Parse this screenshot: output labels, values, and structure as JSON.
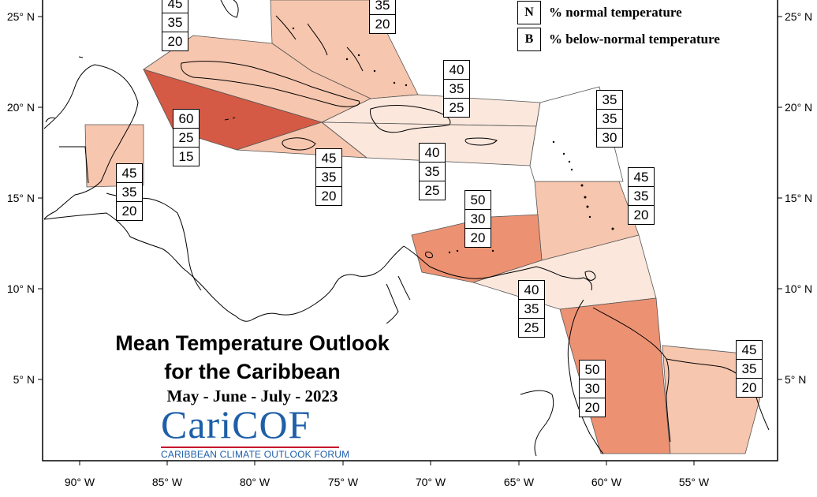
{
  "map": {
    "title_line1": "Mean Temperature Outlook",
    "title_line2": "for the Caribbean",
    "period": "May - June - July - 2023",
    "lon_ticks": [
      "90° W",
      "85° W",
      "80° W",
      "75° W",
      "70° W",
      "65° W",
      "60° W",
      "55° W"
    ],
    "lat_ticks": [
      "25° N",
      "20° N",
      "15° N",
      "10° N",
      "5° N"
    ]
  },
  "legend": {
    "items": [
      {
        "key": "N",
        "label": "% normal temperature"
      },
      {
        "key": "B",
        "label": "% below-normal temperature"
      }
    ]
  },
  "logo": {
    "name_part1": "Cari",
    "name_part2": "COF",
    "subtitle": "CARIBBEAN CLIMATE OUTLOOK FORUM"
  },
  "colors": {
    "above_60": "#d45a45",
    "above_50": "#ec9273",
    "above_45": "#f7c6ae",
    "above_40": "#fbe7dc"
  },
  "zones": [
    {
      "name": "florida-bahamas-west",
      "values": [
        "45",
        "35",
        "20"
      ]
    },
    {
      "name": "bahamas-turks",
      "values": [
        "35",
        "20"
      ]
    },
    {
      "name": "western-cuba-cayman",
      "values": [
        "60",
        "25",
        "15"
      ]
    },
    {
      "name": "hispaniola-north",
      "values": [
        "40",
        "35",
        "25"
      ]
    },
    {
      "name": "belize",
      "values": [
        "45",
        "35",
        "20"
      ]
    },
    {
      "name": "jamaica-eastern-cuba",
      "values": [
        "45",
        "35",
        "20"
      ]
    },
    {
      "name": "puerto-rico-hispaniola",
      "values": [
        "40",
        "35",
        "25"
      ]
    },
    {
      "name": "northern-leewards",
      "values": [
        "35",
        "35",
        "30"
      ]
    },
    {
      "name": "windward-islands",
      "values": [
        "45",
        "35",
        "20"
      ]
    },
    {
      "name": "abc-islands",
      "values": [
        "50",
        "30",
        "20"
      ]
    },
    {
      "name": "trinidad-tobago",
      "values": [
        "40",
        "35",
        "25"
      ]
    },
    {
      "name": "guyana",
      "values": [
        "50",
        "30",
        "20"
      ]
    },
    {
      "name": "suriname-french-guiana",
      "values": [
        "45",
        "35",
        "20"
      ]
    }
  ]
}
